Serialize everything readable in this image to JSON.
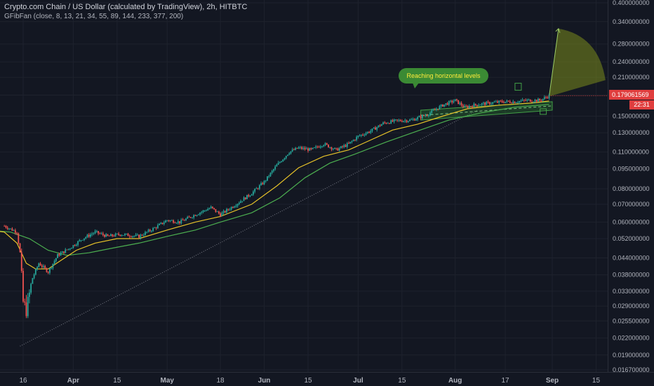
{
  "header": {
    "title": "Crypto.com Chain / US Dollar (calculated by TradingView), 2h, HITBTC",
    "indicator": "GFibFan (close, 8, 13, 21, 34, 55, 89, 144, 233, 377, 200)"
  },
  "annotation": {
    "text": "Reaching horizontal levels"
  },
  "price_tag": {
    "price": "0.179061569",
    "countdown": "22:31"
  },
  "colors": {
    "background": "#131722",
    "grid": "#1e222d",
    "candle_up": "#26a69a",
    "candle_down": "#ef5350",
    "ma_fast": "#e6c229",
    "ma_slow": "#4caf50",
    "trendline": "#787b86",
    "channel": "#2e7d32",
    "fan": "#7a8a1c",
    "price_tag": "#e03e3e"
  },
  "chart_data": {
    "type": "candlestick",
    "scale": "log",
    "ylim": [
      0.0167,
      0.4
    ],
    "y_ticks": [
      "0.400000000",
      "0.340000000",
      "0.280000000",
      "0.240000000",
      "0.210000000",
      "0.180000000",
      "0.150000000",
      "0.130000000",
      "0.110000000",
      "0.095000000",
      "0.080000000",
      "0.070000000",
      "0.060000000",
      "0.052000000",
      "0.044000000",
      "0.038000000",
      "0.033000000",
      "0.029000000",
      "0.025500000",
      "0.022000000",
      "0.019000000",
      "0.016700000"
    ],
    "x_ticks": [
      {
        "label": "16",
        "date": "2021-03-16",
        "bold": false
      },
      {
        "label": "Apr",
        "date": "2021-04-01",
        "bold": true
      },
      {
        "label": "15",
        "date": "2021-04-15",
        "bold": false
      },
      {
        "label": "May",
        "date": "2021-05-01",
        "bold": true
      },
      {
        "label": "18",
        "date": "2021-05-18",
        "bold": false
      },
      {
        "label": "Jun",
        "date": "2021-06-01",
        "bold": true
      },
      {
        "label": "15",
        "date": "2021-06-15",
        "bold": false
      },
      {
        "label": "Jul",
        "date": "2021-07-01",
        "bold": true
      },
      {
        "label": "15",
        "date": "2021-07-15",
        "bold": false
      },
      {
        "label": "Aug",
        "date": "2021-08-01",
        "bold": true
      },
      {
        "label": "17",
        "date": "2021-08-17",
        "bold": false
      },
      {
        "label": "Sep",
        "date": "2021-09-01",
        "bold": true
      },
      {
        "label": "15",
        "date": "2021-09-15",
        "bold": false
      }
    ],
    "price_path": [
      [
        "2021-03-10",
        0.058
      ],
      [
        "2021-03-14",
        0.055
      ],
      [
        "2021-03-15",
        0.046
      ],
      [
        "2021-03-16",
        0.03
      ],
      [
        "2021-03-17",
        0.028
      ],
      [
        "2021-03-19",
        0.037
      ],
      [
        "2021-03-21",
        0.042
      ],
      [
        "2021-03-24",
        0.039
      ],
      [
        "2021-03-27",
        0.045
      ],
      [
        "2021-03-31",
        0.048
      ],
      [
        "2021-04-04",
        0.052
      ],
      [
        "2021-04-08",
        0.055
      ],
      [
        "2021-04-12",
        0.053
      ],
      [
        "2021-04-16",
        0.054
      ],
      [
        "2021-04-22",
        0.053
      ],
      [
        "2021-04-27",
        0.057
      ],
      [
        "2021-05-01",
        0.061
      ],
      [
        "2021-05-05",
        0.06
      ],
      [
        "2021-05-10",
        0.064
      ],
      [
        "2021-05-15",
        0.068
      ],
      [
        "2021-05-18",
        0.064
      ],
      [
        "2021-05-23",
        0.07
      ],
      [
        "2021-05-28",
        0.077
      ],
      [
        "2021-06-01",
        0.085
      ],
      [
        "2021-06-05",
        0.098
      ],
      [
        "2021-06-09",
        0.11
      ],
      [
        "2021-06-12",
        0.114
      ],
      [
        "2021-06-16",
        0.112
      ],
      [
        "2021-06-20",
        0.118
      ],
      [
        "2021-06-24",
        0.112
      ],
      [
        "2021-06-28",
        0.118
      ],
      [
        "2021-07-01",
        0.126
      ],
      [
        "2021-07-05",
        0.132
      ],
      [
        "2021-07-09",
        0.141
      ],
      [
        "2021-07-13",
        0.144
      ],
      [
        "2021-07-18",
        0.145
      ],
      [
        "2021-07-23",
        0.152
      ],
      [
        "2021-07-28",
        0.165
      ],
      [
        "2021-08-01",
        0.172
      ],
      [
        "2021-08-04",
        0.162
      ],
      [
        "2021-08-08",
        0.166
      ],
      [
        "2021-08-12",
        0.168
      ],
      [
        "2021-08-16",
        0.17
      ],
      [
        "2021-08-20",
        0.17
      ],
      [
        "2021-08-24",
        0.172
      ],
      [
        "2021-08-28",
        0.172
      ],
      [
        "2021-08-31",
        0.179
      ]
    ],
    "ma_fast": [
      [
        "2021-03-05",
        0.056
      ],
      [
        "2021-03-10",
        0.055
      ],
      [
        "2021-03-14",
        0.05
      ],
      [
        "2021-03-17",
        0.042
      ],
      [
        "2021-03-20",
        0.04
      ],
      [
        "2021-03-24",
        0.04
      ],
      [
        "2021-03-28",
        0.043
      ],
      [
        "2021-04-02",
        0.047
      ],
      [
        "2021-04-08",
        0.05
      ],
      [
        "2021-04-15",
        0.052
      ],
      [
        "2021-04-22",
        0.052
      ],
      [
        "2021-05-01",
        0.056
      ],
      [
        "2021-05-10",
        0.06
      ],
      [
        "2021-05-18",
        0.063
      ],
      [
        "2021-05-28",
        0.07
      ],
      [
        "2021-06-05",
        0.082
      ],
      [
        "2021-06-12",
        0.096
      ],
      [
        "2021-06-20",
        0.106
      ],
      [
        "2021-06-28",
        0.112
      ],
      [
        "2021-07-05",
        0.122
      ],
      [
        "2021-07-12",
        0.133
      ],
      [
        "2021-07-20",
        0.14
      ],
      [
        "2021-07-28",
        0.15
      ],
      [
        "2021-08-05",
        0.16
      ],
      [
        "2021-08-15",
        0.165
      ],
      [
        "2021-08-25",
        0.168
      ],
      [
        "2021-08-31",
        0.171
      ]
    ],
    "ma_slow": [
      [
        "2021-03-05",
        0.056
      ],
      [
        "2021-03-12",
        0.055
      ],
      [
        "2021-03-18",
        0.052
      ],
      [
        "2021-03-24",
        0.047
      ],
      [
        "2021-03-30",
        0.045
      ],
      [
        "2021-04-06",
        0.046
      ],
      [
        "2021-04-14",
        0.048
      ],
      [
        "2021-04-22",
        0.05
      ],
      [
        "2021-05-01",
        0.053
      ],
      [
        "2021-05-10",
        0.056
      ],
      [
        "2021-05-18",
        0.06
      ],
      [
        "2021-05-28",
        0.065
      ],
      [
        "2021-06-06",
        0.074
      ],
      [
        "2021-06-14",
        0.088
      ],
      [
        "2021-06-22",
        0.1
      ],
      [
        "2021-06-30",
        0.108
      ],
      [
        "2021-07-10",
        0.12
      ],
      [
        "2021-07-20",
        0.132
      ],
      [
        "2021-07-30",
        0.145
      ],
      [
        "2021-08-10",
        0.155
      ],
      [
        "2021-08-20",
        0.162
      ],
      [
        "2021-08-31",
        0.166
      ]
    ],
    "trendline": [
      [
        "2021-03-15",
        0.0205
      ],
      [
        "2021-08-08",
        0.158
      ]
    ],
    "channel": {
      "start": "2021-07-21",
      "end": "2021-09-01",
      "top": [
        0.158,
        0.17
      ],
      "bottom": [
        0.145,
        0.158
      ],
      "mid": [
        0.151,
        0.164
      ]
    },
    "fan": {
      "origin": [
        "2021-08-31",
        0.178
      ],
      "tip": [
        "2021-09-03",
        0.32
      ],
      "edge": [
        "2021-09-18",
        0.205
      ]
    },
    "lows_marker": [
      "2021-08-29",
      0.158
    ],
    "highs_marker": [
      "2021-08-21",
      0.19
    ]
  }
}
